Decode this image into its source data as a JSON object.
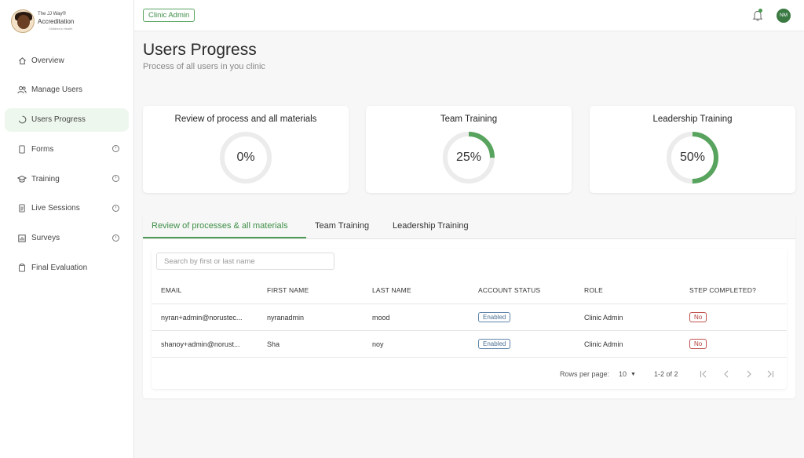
{
  "brand": {
    "logo_line1": "The JJ Way®",
    "logo_line2": "Accreditation",
    "logo_line3": "Children's Health"
  },
  "sidebar": {
    "items": [
      {
        "label": "Overview",
        "icon": "home-icon"
      },
      {
        "label": "Manage Users",
        "icon": "users-icon"
      },
      {
        "label": "Users Progress",
        "icon": "progress-icon",
        "active": true
      },
      {
        "label": "Forms",
        "icon": "file-icon",
        "expandable": true
      },
      {
        "label": "Training",
        "icon": "graduation-cap-icon",
        "expandable": true
      },
      {
        "label": "Live Sessions",
        "icon": "document-icon",
        "expandable": true
      },
      {
        "label": "Surveys",
        "icon": "bar-chart-icon",
        "expandable": true
      },
      {
        "label": "Final Evaluation",
        "icon": "clipboard-icon"
      }
    ]
  },
  "header": {
    "role_badge": "Clinic Admin",
    "avatar_initials": "NM"
  },
  "page": {
    "title": "Users Progress",
    "subtitle": "Process of all users in you clinic"
  },
  "cards": [
    {
      "title": "Review of process and all materials",
      "percent_label": "0%",
      "progress": 0.0
    },
    {
      "title": "Team Training",
      "percent_label": "25%",
      "progress": 0.25
    },
    {
      "title": "Leadership Training",
      "percent_label": "50%",
      "progress": 0.5
    }
  ],
  "tabs": [
    {
      "label": "Review of processes & all materials",
      "active": true
    },
    {
      "label": "Team Training"
    },
    {
      "label": "Leadership Training"
    }
  ],
  "table": {
    "search_placeholder": "Search by first or last name",
    "columns": [
      "EMAIL",
      "FIRST NAME",
      "LAST NAME",
      "ACCOUNT STATUS",
      "ROLE",
      "STEP COMPLETED?"
    ],
    "rows": [
      {
        "email": "nyran+admin@norustec...",
        "first": "nyranadmin",
        "last": "mood",
        "status": "Enabled",
        "role": "Clinic Admin",
        "step": "No"
      },
      {
        "email": "shanoy+admin@norust...",
        "first": "Sha",
        "last": "noy",
        "status": "Enabled",
        "role": "Clinic Admin",
        "step": "No"
      }
    ],
    "rows_per_page_label": "Rows per page:",
    "rows_per_page_value": "10",
    "range_label": "1-2 of 2"
  },
  "colors": {
    "accent": "#58a45e",
    "ring_track": "#ececec",
    "status_blue": "#5e84a8",
    "status_red": "#c0504d"
  }
}
